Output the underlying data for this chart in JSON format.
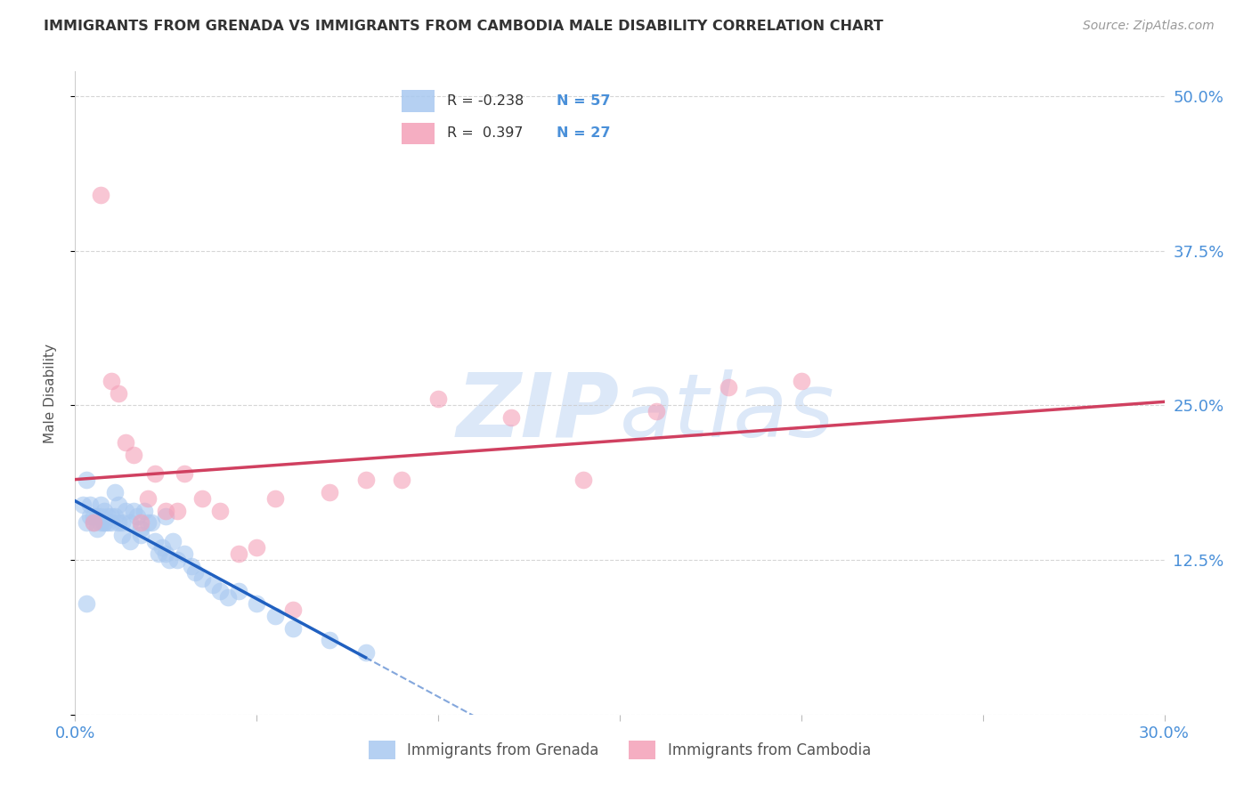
{
  "title": "IMMIGRANTS FROM GRENADA VS IMMIGRANTS FROM CAMBODIA MALE DISABILITY CORRELATION CHART",
  "source": "Source: ZipAtlas.com",
  "ylabel_label": "Male Disability",
  "xlim": [
    0.0,
    0.3
  ],
  "ylim": [
    0.0,
    0.52
  ],
  "xticks": [
    0.0,
    0.05,
    0.1,
    0.15,
    0.2,
    0.25,
    0.3
  ],
  "yticks": [
    0.0,
    0.125,
    0.25,
    0.375,
    0.5
  ],
  "grenada_color": "#A8C8F0",
  "cambodia_color": "#F4A0B8",
  "grenada_line_color": "#2060C0",
  "cambodia_line_color": "#D04060",
  "tick_color_blue": "#4A90D9",
  "grid_color": "#CCCCCC",
  "watermark_color": "#DCE8F8",
  "title_color": "#333333",
  "axis_label_color": "#555555",
  "background_color": "#FFFFFF",
  "grenada_x": [
    0.002,
    0.003,
    0.003,
    0.004,
    0.004,
    0.005,
    0.005,
    0.006,
    0.006,
    0.007,
    0.007,
    0.007,
    0.008,
    0.008,
    0.008,
    0.009,
    0.009,
    0.01,
    0.01,
    0.011,
    0.011,
    0.012,
    0.012,
    0.013,
    0.013,
    0.014,
    0.015,
    0.015,
    0.016,
    0.017,
    0.018,
    0.018,
    0.019,
    0.02,
    0.021,
    0.022,
    0.023,
    0.024,
    0.025,
    0.025,
    0.026,
    0.027,
    0.028,
    0.03,
    0.032,
    0.033,
    0.035,
    0.038,
    0.04,
    0.042,
    0.045,
    0.05,
    0.055,
    0.06,
    0.07,
    0.08,
    0.003
  ],
  "grenada_y": [
    0.17,
    0.09,
    0.155,
    0.17,
    0.16,
    0.155,
    0.16,
    0.15,
    0.16,
    0.17,
    0.155,
    0.16,
    0.165,
    0.155,
    0.155,
    0.16,
    0.155,
    0.155,
    0.16,
    0.18,
    0.16,
    0.155,
    0.17,
    0.145,
    0.155,
    0.165,
    0.155,
    0.14,
    0.165,
    0.16,
    0.145,
    0.15,
    0.165,
    0.155,
    0.155,
    0.14,
    0.13,
    0.135,
    0.13,
    0.16,
    0.125,
    0.14,
    0.125,
    0.13,
    0.12,
    0.115,
    0.11,
    0.105,
    0.1,
    0.095,
    0.1,
    0.09,
    0.08,
    0.07,
    0.06,
    0.05,
    0.19
  ],
  "cambodia_x": [
    0.005,
    0.007,
    0.01,
    0.012,
    0.014,
    0.016,
    0.018,
    0.02,
    0.022,
    0.025,
    0.028,
    0.03,
    0.035,
    0.04,
    0.045,
    0.05,
    0.055,
    0.06,
    0.07,
    0.08,
    0.09,
    0.1,
    0.12,
    0.14,
    0.16,
    0.18,
    0.2
  ],
  "cambodia_y": [
    0.155,
    0.42,
    0.27,
    0.26,
    0.22,
    0.21,
    0.155,
    0.175,
    0.195,
    0.165,
    0.165,
    0.195,
    0.175,
    0.165,
    0.13,
    0.135,
    0.175,
    0.085,
    0.18,
    0.19,
    0.19,
    0.255,
    0.24,
    0.19,
    0.245,
    0.265,
    0.27
  ],
  "grenada_R": -0.238,
  "cambodia_R": 0.397,
  "grenada_N": 57,
  "cambodia_N": 27
}
